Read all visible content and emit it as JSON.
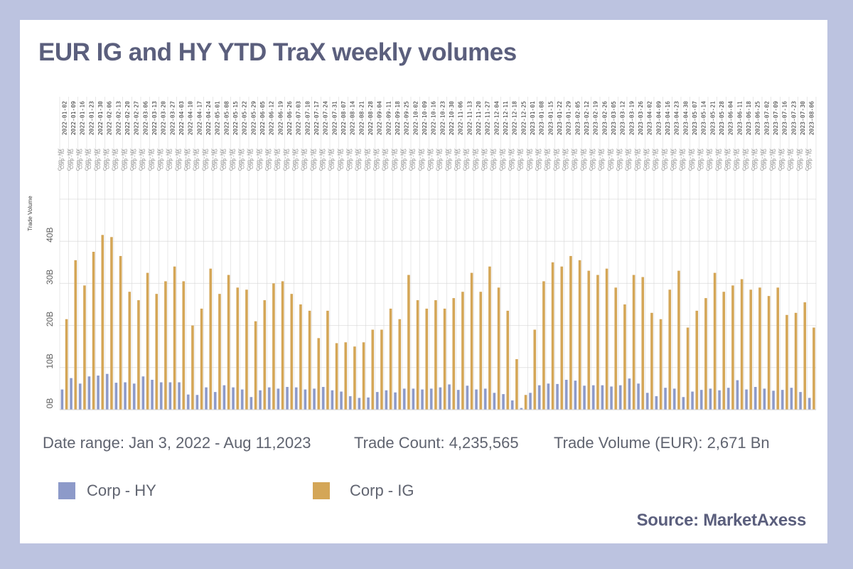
{
  "title": "EUR IG and HY YTD TraX weekly volumes",
  "stats": {
    "date_range": "Date range: Jan 3, 2022 - Aug 11,2023",
    "trade_count": "Trade Count: 4,235,565",
    "trade_volume": "Trade Volume (EUR): 2,671 Bn"
  },
  "source": "Source: MarketAxess",
  "colors": {
    "hy": "#8d9ac9",
    "ig": "#d4a657"
  },
  "chart_data": {
    "type": "bar",
    "ylabel": "Trade Volume",
    "ylim": [
      0,
      50
    ],
    "yticks": [
      "0B",
      "10B",
      "20B",
      "30B",
      "40B"
    ],
    "grid": true,
    "legend_position": "bottom",
    "category_sublabels": [
      "Corp - HY",
      "Corp - IG"
    ],
    "categories": [
      "2022-01-02",
      "2022-01-09",
      "2022-01-16",
      "2022-01-23",
      "2022-01-30",
      "2022-02-06",
      "2022-02-13",
      "2022-02-20",
      "2022-02-27",
      "2022-03-06",
      "2022-03-13",
      "2022-03-20",
      "2022-03-27",
      "2022-04-03",
      "2022-04-10",
      "2022-04-17",
      "2022-04-24",
      "2022-05-01",
      "2022-05-08",
      "2022-05-15",
      "2022-05-22",
      "2022-05-29",
      "2022-06-05",
      "2022-06-12",
      "2022-06-19",
      "2022-06-26",
      "2022-07-03",
      "2022-07-10",
      "2022-07-17",
      "2022-07-24",
      "2022-07-31",
      "2022-08-07",
      "2022-08-14",
      "2022-08-21",
      "2022-08-28",
      "2022-09-04",
      "2022-09-11",
      "2022-09-18",
      "2022-09-25",
      "2022-10-02",
      "2022-10-09",
      "2022-10-16",
      "2022-10-23",
      "2022-10-30",
      "2022-11-06",
      "2022-11-13",
      "2022-11-20",
      "2022-11-27",
      "2022-12-04",
      "2022-12-11",
      "2022-12-18",
      "2022-12-25",
      "2023-01-01",
      "2023-01-08",
      "2023-01-15",
      "2023-01-22",
      "2023-01-29",
      "2023-02-05",
      "2023-02-12",
      "2023-02-19",
      "2023-02-26",
      "2023-03-05",
      "2023-03-12",
      "2023-03-19",
      "2023-03-26",
      "2023-04-02",
      "2023-04-09",
      "2023-04-16",
      "2023-04-23",
      "2023-04-30",
      "2023-05-07",
      "2023-05-14",
      "2023-05-21",
      "2023-05-28",
      "2023-06-04",
      "2023-06-11",
      "2023-06-18",
      "2023-06-25",
      "2023-07-02",
      "2023-07-09",
      "2023-07-16",
      "2023-07-23",
      "2023-07-30",
      "2023-08-06"
    ],
    "series": [
      {
        "name": "Corp - HY",
        "values": [
          4.8,
          7.5,
          6.2,
          7.9,
          8.1,
          8.5,
          6.4,
          6.5,
          6.2,
          7.9,
          7.1,
          6.5,
          6.5,
          6.5,
          3.6,
          3.5,
          5.3,
          4.2,
          5.8,
          5.3,
          4.8,
          3.0,
          4.6,
          5.3,
          5.0,
          5.4,
          5.3,
          4.8,
          5.0,
          5.4,
          4.6,
          4.3,
          3.2,
          2.8,
          2.9,
          4.2,
          4.6,
          4.1,
          5.0,
          5.0,
          4.8,
          5.0,
          5.3,
          6.0,
          4.7,
          5.7,
          4.8,
          5.0,
          4.0,
          3.7,
          2.2,
          0.4,
          4.0,
          5.8,
          6.2,
          6.1,
          7.1,
          6.9,
          5.7,
          5.8,
          5.8,
          5.5,
          5.8,
          7.4,
          6.2,
          4.0,
          3.2,
          5.2,
          5.0,
          3.0,
          4.3,
          4.7,
          5.0,
          4.6,
          5.2,
          7.0,
          4.8,
          5.4,
          5.0,
          4.5,
          4.7,
          5.2,
          4.2,
          2.8
        ]
      },
      {
        "name": "Corp - IG",
        "values": [
          21.5,
          35.5,
          29.5,
          37.5,
          41.5,
          41,
          36.5,
          28,
          26,
          32.5,
          27.5,
          30.5,
          34,
          30.5,
          20,
          24,
          33.5,
          27.5,
          32,
          29,
          28.5,
          21,
          26,
          30,
          30.5,
          27.5,
          25,
          23.5,
          17,
          23.5,
          15.8,
          16,
          15,
          16,
          19,
          19,
          24,
          21.5,
          32,
          26,
          24,
          26,
          24,
          26.5,
          28,
          32.5,
          28,
          34,
          29,
          23.5,
          12,
          3.5,
          19,
          30.5,
          35,
          34,
          36.5,
          35.5,
          33,
          32,
          33.5,
          29,
          25,
          32,
          31.5,
          23,
          21.5,
          28.5,
          33,
          19.5,
          23.5,
          26.5,
          32.5,
          28,
          29.5,
          31,
          28.5,
          29,
          27,
          29,
          22.5,
          23,
          25.5,
          19.5
        ]
      }
    ]
  }
}
